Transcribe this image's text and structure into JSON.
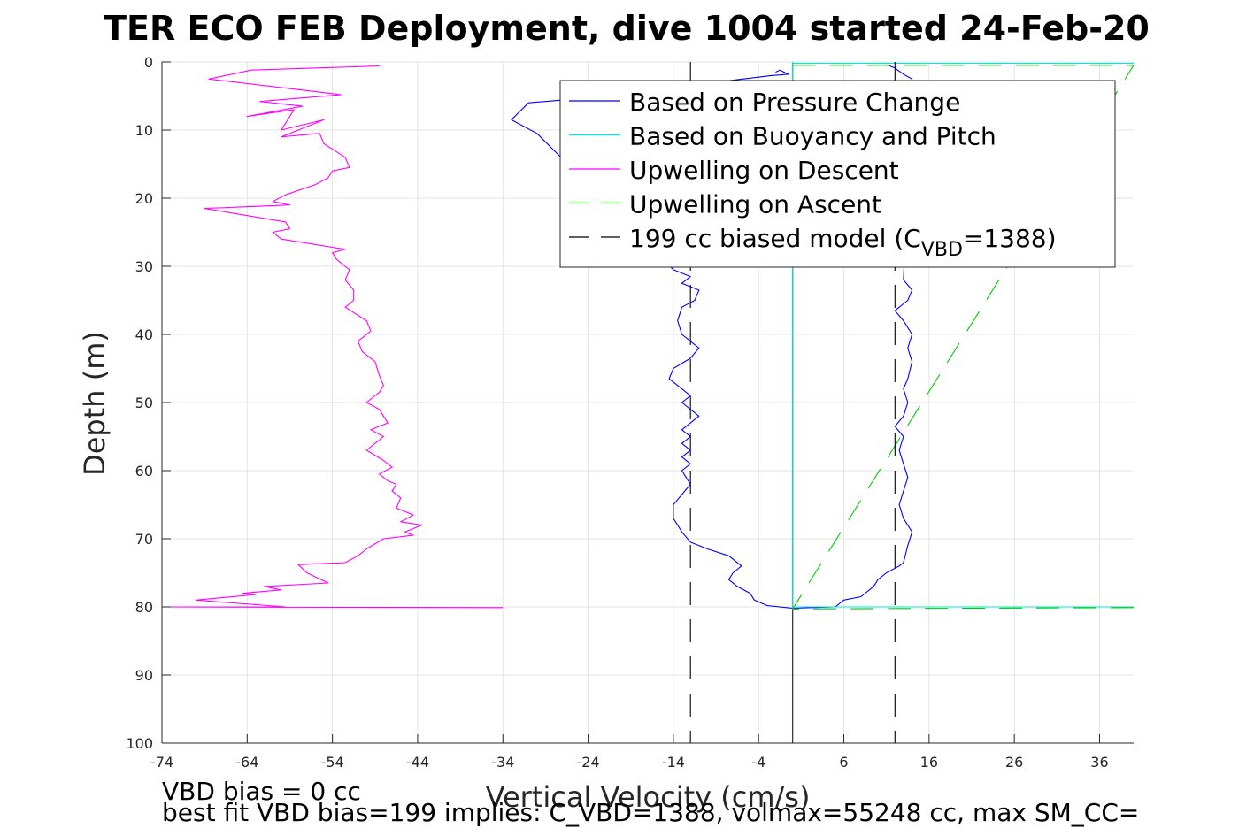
{
  "title": "TER ECO FEB Deployment, dive 1004 started 24-Feb-20",
  "footnotes": {
    "line1": "VBD bias = 0 cc",
    "line2": "best fit VBD bias=199 implies: C_VBD=1388, volmax=55248 cc, max SM_CC="
  },
  "legend": {
    "placement": "top-right",
    "entries": [
      {
        "label": "Based on Pressure Change",
        "color": "#0000ff",
        "dash": "solid"
      },
      {
        "label": "Based on Buoyancy and Pitch",
        "color": "#00e5e5",
        "dash": "solid"
      },
      {
        "label": "Upwelling on Descent",
        "color": "#ff00ff",
        "dash": "solid"
      },
      {
        "label": "Upwelling on Ascent",
        "color": "#00cc00",
        "dash": "dashed"
      },
      {
        "label": "199 cc biased model (C",
        "sub": "VBD",
        "tail": "=1388)",
        "color": "#000000",
        "dash": "dashed"
      }
    ]
  },
  "chart_data": {
    "type": "line",
    "title": "TER ECO FEB Deployment, dive 1004 started 24-Feb-20",
    "xlabel": "Vertical Velocity (cm/s)",
    "ylabel": "Depth (m)",
    "xlim": [
      -74,
      40
    ],
    "ylim": [
      0,
      100
    ],
    "y_reversed": true,
    "grid": true,
    "xticks": [
      -74,
      -64,
      -54,
      -44,
      -34,
      -24,
      -14,
      -4,
      6,
      16,
      26,
      36
    ],
    "yticks": [
      0,
      10,
      20,
      30,
      40,
      50,
      60,
      70,
      80,
      90,
      100
    ],
    "series": [
      {
        "name": "Based on Pressure Change",
        "color": "#0000ff",
        "dash": "solid",
        "x": [
          -2.0,
          -1.5,
          -0.5,
          -2.5,
          -26,
          -31,
          -33,
          -30,
          -14.0,
          -12.0,
          -13.0,
          -11.0,
          -11.5,
          -13.0,
          -13.5,
          -13.0,
          -11.0,
          -12.0,
          -14.0,
          -14.5,
          -13.0,
          -12.0,
          -13.0,
          -12.0,
          -11.0,
          -12.0,
          -13.0,
          -12.0,
          -13.0,
          -12.0,
          -13.0,
          -12.0,
          -13.0,
          -12.5,
          -12.0,
          -13.0,
          -14.0,
          -14.0,
          -13.0,
          -12.0,
          -10.0,
          -7.5,
          -6.0,
          -7.0,
          -7.5,
          -6.5,
          -5.0,
          -4.5,
          -3.0,
          0.0,
          5.0,
          6.0,
          8.0,
          9.5,
          10.0,
          11.0,
          12.5,
          13.0,
          13.5,
          14.0,
          13.0,
          12.5,
          13.0,
          13.5,
          13.0,
          12.5,
          13.0,
          12.0,
          13.0,
          13.5,
          13.0,
          13.5,
          14.0,
          13.5,
          14.0,
          13.0,
          12.0,
          13.5,
          14.0,
          13.0,
          14.0,
          13.0,
          12.0,
          11.0
        ],
        "y": [
          1.5,
          1.2,
          1.8,
          2.0,
          5.5,
          6.0,
          8.5,
          10.5,
          30.5,
          31.5,
          32.5,
          33.5,
          35.0,
          36.0,
          38.0,
          40.0,
          42.0,
          43.5,
          45.0,
          46.5,
          48.0,
          49.0,
          50.0,
          51.0,
          52.0,
          53.0,
          54.0,
          55.0,
          56.0,
          57.0,
          58.0,
          59.0,
          60.0,
          61.0,
          62.0,
          63.5,
          65.0,
          67.0,
          69.0,
          70.5,
          71.5,
          72.5,
          74.0,
          75.0,
          76.0,
          77.0,
          78.0,
          79.0,
          79.8,
          80.2,
          80.0,
          79.0,
          78.5,
          77.0,
          76.0,
          75.0,
          74.0,
          73.5,
          71.0,
          69.0,
          67.0,
          65.0,
          63.0,
          61.0,
          59.0,
          57.0,
          55.0,
          53.5,
          52.0,
          50.0,
          48.0,
          46.5,
          44.0,
          42.0,
          40.0,
          38.0,
          36.5,
          35.0,
          33.5,
          32.0,
          2.5,
          1.8,
          0.9,
          0.4
        ]
      },
      {
        "name": "Based on Buoyancy and Pitch",
        "color": "#00e5e5",
        "dash": "solid",
        "x": [
          0.0,
          0.0,
          40.0,
          0.0,
          0.0,
          0.0,
          40.0
        ],
        "y": [
          0.0,
          0.2,
          0.2,
          0.2,
          80.2,
          80.0,
          80.0
        ]
      },
      {
        "name": "Upwelling on Descent",
        "color": "#ff00ff",
        "dash": "solid",
        "x": [
          -48.5,
          -63.5,
          -68.5,
          -53.0,
          -62.5,
          -57.5,
          -64.0,
          -58.5,
          -60.0,
          -55.0,
          -60.0,
          -55.5,
          -55.0,
          -52.5,
          -52.0,
          -54.0,
          -54.5,
          -56.0,
          -59.5,
          -61.0,
          -59.0,
          -69.0,
          -59.5,
          -59.0,
          -61.0,
          -60.0,
          -57.5,
          -52.5,
          -54.0,
          -53.5,
          -52.0,
          -52.5,
          -51.5,
          -51.5,
          -52.5,
          -50.0,
          -49.5,
          -51.0,
          -50.5,
          -49.0,
          -48.5,
          -48.0,
          -48.5,
          -50.0,
          -48.5,
          -48.0,
          -47.5,
          -49.5,
          -48.0,
          -50.0,
          -48.0,
          -47.0,
          -48.5,
          -47.5,
          -46.5,
          -47.0,
          -46.0,
          -46.5,
          -44.5,
          -46.0,
          -43.5,
          -45.5,
          -44.5,
          -48.0,
          -50.0,
          -51.0,
          -52.5,
          -58.0,
          -57.0,
          -54.5,
          -62.0,
          -60.0,
          -64.5,
          -63.0,
          -70.0,
          -68.0,
          -59.5,
          -74.0,
          -34.0
        ],
        "y": [
          0.6,
          1.2,
          2.5,
          4.8,
          5.8,
          6.5,
          8.0,
          7.0,
          10.0,
          8.5,
          11.0,
          10.5,
          12.0,
          14.0,
          15.5,
          16.0,
          17.0,
          18.0,
          19.5,
          20.5,
          21.0,
          21.5,
          23.5,
          24.5,
          25.0,
          26.0,
          26.5,
          27.5,
          28.0,
          29.0,
          30.5,
          32.0,
          33.5,
          35.0,
          36.0,
          38.0,
          39.5,
          41.0,
          42.5,
          44.0,
          46.0,
          47.5,
          48.5,
          50.0,
          51.0,
          52.0,
          53.0,
          54.0,
          55.0,
          57.0,
          58.5,
          59.5,
          60.5,
          61.5,
          62.0,
          63.0,
          64.0,
          65.5,
          66.5,
          67.5,
          68.0,
          69.0,
          69.5,
          70.0,
          71.5,
          72.5,
          73.5,
          73.8,
          75.0,
          76.5,
          77.0,
          77.5,
          78.0,
          78.2,
          79.0,
          79.2,
          80.0,
          80.0,
          80.1
        ]
      },
      {
        "name": "Upwelling on Ascent",
        "color": "#00cc00",
        "dash": "dashed",
        "x": [
          0.0,
          40.0,
          0.0,
          40.0
        ],
        "y": [
          0.5,
          0.5,
          80.3,
          80.1
        ]
      },
      {
        "name": "199 cc biased model (CVBD=1388)",
        "color": "#000000",
        "dash": "dashed",
        "segments": [
          {
            "x": [
              -12,
              -12
            ],
            "y": [
              0,
              100
            ]
          },
          {
            "x": [
              12,
              12
            ],
            "y": [
              0,
              100
            ]
          }
        ]
      }
    ],
    "reference_lines": [
      {
        "orientation": "vertical",
        "x": 0.0,
        "color": "#000000",
        "dash": "solid",
        "y": [
          0,
          100
        ]
      }
    ]
  }
}
